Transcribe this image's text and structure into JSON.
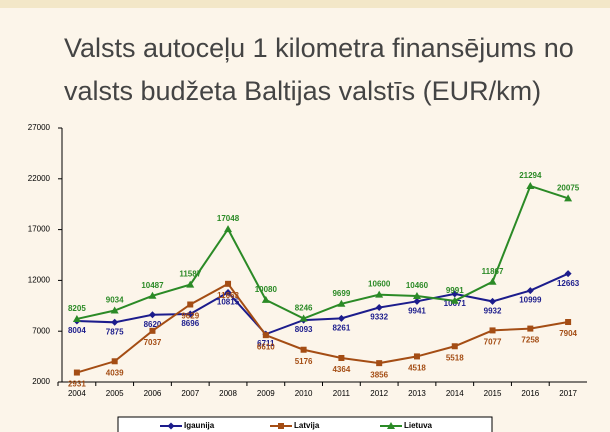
{
  "chart_data": {
    "type": "line",
    "title": "Valsts autoceļu 1 kilometra finansējums no valsts budžeta Baltijas valstīs (EUR/km)",
    "categories": [
      "2004",
      "2005",
      "2006",
      "2007",
      "2008",
      "2009",
      "2010",
      "2011",
      "2012",
      "2013",
      "2014",
      "2015",
      "2016",
      "2017"
    ],
    "series": [
      {
        "name": "Igaunija",
        "color": "#1c1c8c",
        "values": [
          8004,
          7875,
          8620,
          8696,
          10815,
          6711,
          8093,
          8261,
          9332,
          9941,
          10671,
          9932,
          10999,
          12663
        ]
      },
      {
        "name": "Latvija",
        "color": "#a44d14",
        "values": [
          2931,
          4039,
          7037,
          9629,
          11663,
          6610,
          5176,
          4364,
          3856,
          4518,
          5518,
          7077,
          7258,
          7904
        ]
      },
      {
        "name": "Lietuva",
        "color": "#2b8a26",
        "values": [
          8205,
          9034,
          10487,
          11587,
          17048,
          10080,
          8246,
          9699,
          10600,
          10460,
          9991,
          11867,
          21294,
          20075
        ]
      }
    ],
    "ylim": [
      2000,
      27000
    ],
    "yticks": [
      2000,
      7000,
      12000,
      17000,
      22000,
      27000
    ],
    "grid": false
  }
}
